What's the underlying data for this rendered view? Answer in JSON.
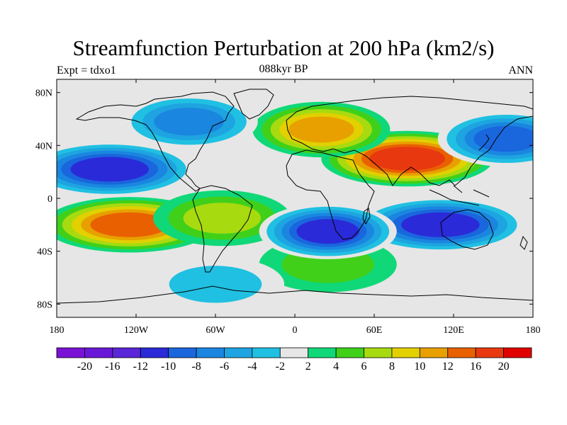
{
  "title": "Streamfunction Perturbation at 200 hPa (km2/s)",
  "left_label": "Expt = tdxo1",
  "center_label": "088kyr BP",
  "right_label": "ANN",
  "lat_ticks": [
    "80N",
    "40N",
    "0",
    "40S",
    "80S"
  ],
  "lon_ticks": [
    "180",
    "120W",
    "60W",
    "0",
    "60E",
    "120E",
    "180"
  ],
  "colorbar": {
    "labels": [
      "-20",
      "-16",
      "-12",
      "-10",
      "-8",
      "-6",
      "-4",
      "-2",
      "2",
      "4",
      "6",
      "8",
      "10",
      "12",
      "16",
      "20"
    ],
    "colors": [
      "#7a12d6",
      "#6a18d8",
      "#5a26d8",
      "#2a2ad8",
      "#1a66dd",
      "#1a86e0",
      "#1ea4e0",
      "#20c0e2",
      "#e6e6e6",
      "#10d878",
      "#40d01a",
      "#a8da10",
      "#e2d000",
      "#e8a000",
      "#e86000",
      "#e83810",
      "#e00000"
    ]
  },
  "chart_data": {
    "type": "heatmap",
    "title": "Streamfunction Perturbation at 200 hPa (km2/s)",
    "subtitle": "088kyr BP",
    "experiment": "Expt = tdxo1",
    "season": "ANN",
    "x_ticks": [
      "180",
      "120W",
      "60W",
      "0",
      "60E",
      "120E",
      "180"
    ],
    "y_ticks": [
      "80N",
      "40N",
      "0",
      "40S",
      "80S"
    ],
    "xlim": [
      -180,
      180
    ],
    "ylim": [
      -90,
      90
    ],
    "levels": [
      -20,
      -16,
      -12,
      -10,
      -8,
      -6,
      -4,
      -2,
      2,
      4,
      6,
      8,
      10,
      12,
      16,
      20
    ],
    "features": [
      {
        "lon": 85,
        "lat": 30,
        "value": 16
      },
      {
        "lon": 20,
        "lat": 52,
        "value": 10
      },
      {
        "lon": -125,
        "lat": -20,
        "value": 14
      },
      {
        "lon": -55,
        "lat": -15,
        "value": 7
      },
      {
        "lon": 25,
        "lat": -50,
        "value": 4
      },
      {
        "lon": -140,
        "lat": 22,
        "value": -14
      },
      {
        "lon": -80,
        "lat": 58,
        "value": -9
      },
      {
        "lon": 110,
        "lat": -20,
        "value": -14
      },
      {
        "lon": 25,
        "lat": -25,
        "value": -12
      },
      {
        "lon": 160,
        "lat": 45,
        "value": -10
      },
      {
        "lon": -60,
        "lat": -65,
        "value": -5
      }
    ]
  }
}
